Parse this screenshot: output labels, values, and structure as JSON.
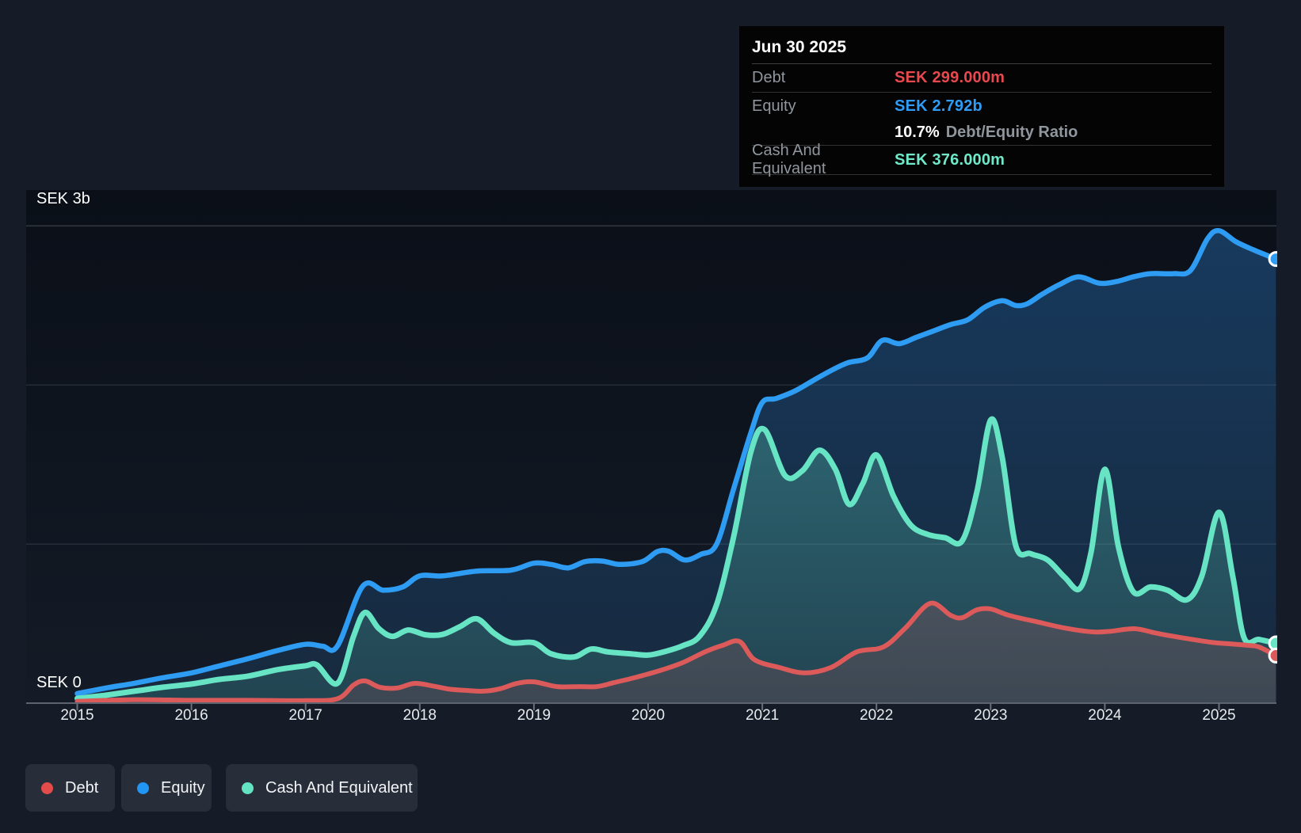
{
  "tooltip": {
    "date": "Jun 30 2025",
    "rows": [
      {
        "label": "Debt",
        "value": "SEK 299.000m",
        "color": "#e8494f"
      },
      {
        "label": "Equity",
        "value": "SEK 2.792b",
        "color": "#2f9cf5"
      },
      {
        "label": "Cash And Equivalent",
        "value": "SEK 376.000m",
        "color": "#6fe9ca"
      }
    ],
    "ratio_value": "10.7%",
    "ratio_label": "Debt/Equity Ratio"
  },
  "axis": {
    "y_top_label": "SEK 3b",
    "y_zero_label": "SEK 0",
    "x_labels": [
      "2015",
      "2016",
      "2017",
      "2018",
      "2019",
      "2020",
      "2021",
      "2022",
      "2023",
      "2024",
      "2025"
    ]
  },
  "legend": [
    {
      "label": "Debt",
      "color": "#e44b4b"
    },
    {
      "label": "Equity",
      "color": "#2196f3"
    },
    {
      "label": "Cash And Equivalent",
      "color": "#64e3c3"
    }
  ],
  "colors": {
    "background": "#151c27",
    "plot_top": "#0a0f18",
    "plot_bottom": "#141b26",
    "gridline": "rgba(255,255,255,0.10)",
    "gridline_top": "rgba(255,255,255,0.17)",
    "axis_line": "#5c636e",
    "tick": "#6a7078",
    "marker_ring": "#ffffff"
  },
  "chart_data": {
    "type": "area",
    "title": "",
    "xlabel": "",
    "ylabel": "",
    "x_unit": "decimal_year",
    "x_range": [
      2015.0,
      2025.5
    ],
    "ylim_sek_b": [
      0,
      3
    ],
    "y_gridlines_sek_b": [
      1,
      2,
      3
    ],
    "y_tick_labels": [
      "SEK 0",
      "SEK 3b"
    ],
    "x_tick_labels": [
      "2015",
      "2016",
      "2017",
      "2018",
      "2019",
      "2020",
      "2021",
      "2022",
      "2023",
      "2024",
      "2025"
    ],
    "legend_position": "bottom-left",
    "hovered_point": {
      "date": "Jun 30 2025",
      "debt_sek_b": 0.299,
      "equity_sek_b": 2.792,
      "cash_sek_b": 0.376,
      "debt_equity_ratio_pct": 10.7
    },
    "series": [
      {
        "name": "Equity",
        "color": "#2d9cf2",
        "fill_rgb": "45,130,210",
        "points": [
          [
            2015.0,
            0.06
          ],
          [
            2015.25,
            0.095
          ],
          [
            2015.5,
            0.125
          ],
          [
            2015.75,
            0.16
          ],
          [
            2016.0,
            0.19
          ],
          [
            2016.25,
            0.235
          ],
          [
            2016.5,
            0.28
          ],
          [
            2016.75,
            0.33
          ],
          [
            2017.0,
            0.37
          ],
          [
            2017.15,
            0.358
          ],
          [
            2017.28,
            0.36
          ],
          [
            2017.5,
            0.735
          ],
          [
            2017.68,
            0.71
          ],
          [
            2017.85,
            0.73
          ],
          [
            2018.0,
            0.8
          ],
          [
            2018.2,
            0.8
          ],
          [
            2018.5,
            0.83
          ],
          [
            2018.8,
            0.836
          ],
          [
            2019.0,
            0.88
          ],
          [
            2019.15,
            0.872
          ],
          [
            2019.3,
            0.85
          ],
          [
            2019.45,
            0.89
          ],
          [
            2019.6,
            0.893
          ],
          [
            2019.75,
            0.872
          ],
          [
            2019.95,
            0.89
          ],
          [
            2020.08,
            0.952
          ],
          [
            2020.18,
            0.955
          ],
          [
            2020.32,
            0.9
          ],
          [
            2020.46,
            0.935
          ],
          [
            2020.6,
            1.0
          ],
          [
            2020.75,
            1.35
          ],
          [
            2020.9,
            1.7
          ],
          [
            2021.0,
            1.89
          ],
          [
            2021.12,
            1.915
          ],
          [
            2021.28,
            1.96
          ],
          [
            2021.45,
            2.03
          ],
          [
            2021.6,
            2.09
          ],
          [
            2021.75,
            2.14
          ],
          [
            2021.92,
            2.17
          ],
          [
            2022.05,
            2.28
          ],
          [
            2022.2,
            2.26
          ],
          [
            2022.35,
            2.3
          ],
          [
            2022.5,
            2.34
          ],
          [
            2022.65,
            2.38
          ],
          [
            2022.8,
            2.41
          ],
          [
            2022.95,
            2.49
          ],
          [
            2023.1,
            2.53
          ],
          [
            2023.22,
            2.5
          ],
          [
            2023.32,
            2.51
          ],
          [
            2023.45,
            2.57
          ],
          [
            2023.6,
            2.63
          ],
          [
            2023.77,
            2.68
          ],
          [
            2023.95,
            2.64
          ],
          [
            2024.1,
            2.65
          ],
          [
            2024.25,
            2.68
          ],
          [
            2024.4,
            2.7
          ],
          [
            2024.6,
            2.7
          ],
          [
            2024.75,
            2.72
          ],
          [
            2024.9,
            2.92
          ],
          [
            2025.0,
            2.97
          ],
          [
            2025.15,
            2.9
          ],
          [
            2025.3,
            2.85
          ],
          [
            2025.5,
            2.792
          ]
        ]
      },
      {
        "name": "Cash And Equivalent",
        "color": "#66e4c4",
        "fill_rgb": "102,228,196",
        "points": [
          [
            2015.0,
            0.03
          ],
          [
            2015.25,
            0.05
          ],
          [
            2015.5,
            0.075
          ],
          [
            2015.75,
            0.1
          ],
          [
            2016.0,
            0.12
          ],
          [
            2016.25,
            0.15
          ],
          [
            2016.5,
            0.17
          ],
          [
            2016.75,
            0.21
          ],
          [
            2017.0,
            0.235
          ],
          [
            2017.1,
            0.24
          ],
          [
            2017.28,
            0.125
          ],
          [
            2017.42,
            0.42
          ],
          [
            2017.52,
            0.57
          ],
          [
            2017.64,
            0.47
          ],
          [
            2017.76,
            0.42
          ],
          [
            2017.9,
            0.46
          ],
          [
            2018.05,
            0.43
          ],
          [
            2018.2,
            0.432
          ],
          [
            2018.35,
            0.48
          ],
          [
            2018.5,
            0.53
          ],
          [
            2018.65,
            0.44
          ],
          [
            2018.8,
            0.38
          ],
          [
            2019.0,
            0.38
          ],
          [
            2019.15,
            0.31
          ],
          [
            2019.35,
            0.29
          ],
          [
            2019.5,
            0.34
          ],
          [
            2019.65,
            0.322
          ],
          [
            2019.85,
            0.31
          ],
          [
            2020.0,
            0.302
          ],
          [
            2020.15,
            0.325
          ],
          [
            2020.3,
            0.36
          ],
          [
            2020.45,
            0.42
          ],
          [
            2020.6,
            0.62
          ],
          [
            2020.75,
            1.05
          ],
          [
            2020.9,
            1.58
          ],
          [
            2021.02,
            1.72
          ],
          [
            2021.2,
            1.43
          ],
          [
            2021.35,
            1.46
          ],
          [
            2021.5,
            1.59
          ],
          [
            2021.64,
            1.47
          ],
          [
            2021.76,
            1.25
          ],
          [
            2021.88,
            1.38
          ],
          [
            2022.0,
            1.56
          ],
          [
            2022.15,
            1.3
          ],
          [
            2022.3,
            1.12
          ],
          [
            2022.45,
            1.06
          ],
          [
            2022.6,
            1.04
          ],
          [
            2022.75,
            1.02
          ],
          [
            2022.88,
            1.33
          ],
          [
            2023.0,
            1.78
          ],
          [
            2023.1,
            1.55
          ],
          [
            2023.22,
            0.99
          ],
          [
            2023.35,
            0.94
          ],
          [
            2023.5,
            0.9
          ],
          [
            2023.65,
            0.79
          ],
          [
            2023.78,
            0.72
          ],
          [
            2023.88,
            0.95
          ],
          [
            2024.0,
            1.47
          ],
          [
            2024.12,
            0.98
          ],
          [
            2024.25,
            0.7
          ],
          [
            2024.4,
            0.73
          ],
          [
            2024.55,
            0.71
          ],
          [
            2024.72,
            0.65
          ],
          [
            2024.85,
            0.8
          ],
          [
            2025.0,
            1.2
          ],
          [
            2025.12,
            0.8
          ],
          [
            2025.22,
            0.41
          ],
          [
            2025.35,
            0.4
          ],
          [
            2025.5,
            0.376
          ]
        ]
      },
      {
        "name": "Debt",
        "color": "#dc5a5a",
        "fill_rgb": "220,90,90",
        "points": [
          [
            2015.0,
            0.012
          ],
          [
            2015.5,
            0.022
          ],
          [
            2016.0,
            0.018
          ],
          [
            2016.5,
            0.018
          ],
          [
            2017.0,
            0.016
          ],
          [
            2017.28,
            0.028
          ],
          [
            2017.42,
            0.114
          ],
          [
            2017.52,
            0.14
          ],
          [
            2017.65,
            0.1
          ],
          [
            2017.8,
            0.095
          ],
          [
            2017.95,
            0.124
          ],
          [
            2018.1,
            0.11
          ],
          [
            2018.25,
            0.089
          ],
          [
            2018.4,
            0.08
          ],
          [
            2018.55,
            0.075
          ],
          [
            2018.7,
            0.09
          ],
          [
            2018.85,
            0.124
          ],
          [
            2019.0,
            0.134
          ],
          [
            2019.2,
            0.104
          ],
          [
            2019.4,
            0.104
          ],
          [
            2019.55,
            0.104
          ],
          [
            2019.7,
            0.129
          ],
          [
            2019.9,
            0.164
          ],
          [
            2020.1,
            0.204
          ],
          [
            2020.3,
            0.254
          ],
          [
            2020.5,
            0.323
          ],
          [
            2020.65,
            0.363
          ],
          [
            2020.8,
            0.388
          ],
          [
            2020.93,
            0.274
          ],
          [
            2021.15,
            0.224
          ],
          [
            2021.37,
            0.19
          ],
          [
            2021.6,
            0.224
          ],
          [
            2021.83,
            0.323
          ],
          [
            2022.06,
            0.353
          ],
          [
            2022.25,
            0.47
          ],
          [
            2022.47,
            0.627
          ],
          [
            2022.65,
            0.552
          ],
          [
            2022.75,
            0.537
          ],
          [
            2022.88,
            0.587
          ],
          [
            2023.0,
            0.592
          ],
          [
            2023.16,
            0.552
          ],
          [
            2023.4,
            0.512
          ],
          [
            2023.65,
            0.472
          ],
          [
            2023.89,
            0.448
          ],
          [
            2024.05,
            0.452
          ],
          [
            2024.26,
            0.468
          ],
          [
            2024.45,
            0.44
          ],
          [
            2024.6,
            0.42
          ],
          [
            2024.93,
            0.383
          ],
          [
            2025.1,
            0.373
          ],
          [
            2025.26,
            0.363
          ],
          [
            2025.35,
            0.353
          ],
          [
            2025.5,
            0.299
          ]
        ]
      }
    ]
  }
}
